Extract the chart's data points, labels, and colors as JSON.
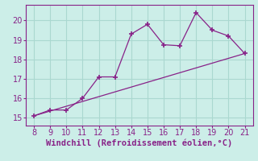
{
  "x": [
    8,
    9,
    10,
    11,
    12,
    13,
    14,
    15,
    16,
    17,
    18,
    19,
    20,
    21
  ],
  "y": [
    15.1,
    15.4,
    15.4,
    16.0,
    17.1,
    17.1,
    19.3,
    19.8,
    18.75,
    18.7,
    20.4,
    19.5,
    19.2,
    18.3
  ],
  "line_color": "#882288",
  "marker_color": "#882288",
  "bg_color": "#cceee8",
  "grid_color": "#aad8d0",
  "xlabel": "Windchill (Refroidissement éolien,°C)",
  "xlabel_color": "#882288",
  "xlabel_fontsize": 7.5,
  "tick_color": "#882288",
  "tick_fontsize": 7,
  "xlim": [
    7.5,
    21.5
  ],
  "ylim": [
    14.6,
    20.8
  ],
  "xticks": [
    8,
    9,
    10,
    11,
    12,
    13,
    14,
    15,
    16,
    17,
    18,
    19,
    20,
    21
  ],
  "yticks": [
    15,
    16,
    17,
    18,
    19,
    20
  ],
  "trend_x": [
    8,
    21
  ],
  "trend_y": [
    15.1,
    18.3
  ]
}
